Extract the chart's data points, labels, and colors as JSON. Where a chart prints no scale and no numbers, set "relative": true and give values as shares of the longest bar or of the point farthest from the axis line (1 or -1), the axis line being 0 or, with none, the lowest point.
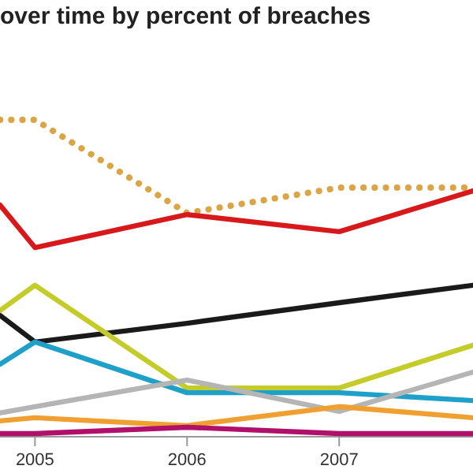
{
  "chart_data": {
    "type": "line",
    "title": "over time by percent of breaches",
    "relative": true,
    "x": [
      2004.77,
      2005,
      2006,
      2007,
      2007.88
    ],
    "xlim": [
      2004.77,
      2007.88
    ],
    "xticks": [
      2005,
      2006,
      2007
    ],
    "marker": "none",
    "grid": false,
    "tick_labels": "x",
    "series": [
      {
        "color": "#dba444",
        "line_style": "dotted",
        "values": [
          1.0,
          1.0,
          0.706,
          0.786,
          0.786
        ]
      },
      {
        "color": "#d7191c",
        "values": [
          0.731,
          0.597,
          0.701,
          0.647,
          0.776
        ]
      },
      {
        "color": "#1a1a1a",
        "values": [
          0.383,
          0.299,
          0.358,
          0.423,
          0.478
        ]
      },
      {
        "color": "#c4cc2a",
        "values": [
          0.398,
          0.478,
          0.154,
          0.154,
          0.289
        ]
      },
      {
        "color": "#1ea0c8",
        "values": [
          0.229,
          0.299,
          0.139,
          0.139,
          0.114
        ]
      },
      {
        "color": "#b5b5b5",
        "values": [
          0.075,
          0.095,
          0.179,
          0.08,
          0.204
        ]
      },
      {
        "color": "#f0a030",
        "values": [
          0.05,
          0.06,
          0.035,
          0.095,
          0.06
        ]
      },
      {
        "color": "#b0106a",
        "values": [
          0.01,
          0.01,
          0.03,
          0.01,
          0.01
        ]
      }
    ]
  }
}
